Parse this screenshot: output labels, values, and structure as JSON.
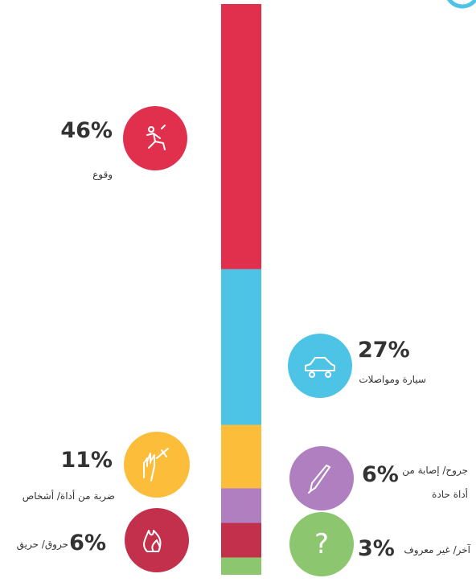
{
  "chart_data": {
    "type": "stacked_bar",
    "categories": [
      "وقوع",
      "سيارة ومواصلات",
      "ضربة من أداة/ أشخاص",
      "جروح/ إصابة من أداة حادة",
      "حروق/ حريق",
      "آخر/ غير معروف"
    ],
    "values": [
      46,
      27,
      11,
      6,
      6,
      3
    ],
    "value_labels": [
      "46%",
      "27%",
      "11%",
      "6%",
      "6%",
      "3%"
    ],
    "colors": [
      "#e1304d",
      "#4dc3e6",
      "#fcbd3b",
      "#b07fc0",
      "#c2304b",
      "#8cc66e"
    ],
    "unknown_icon_text": "?"
  }
}
